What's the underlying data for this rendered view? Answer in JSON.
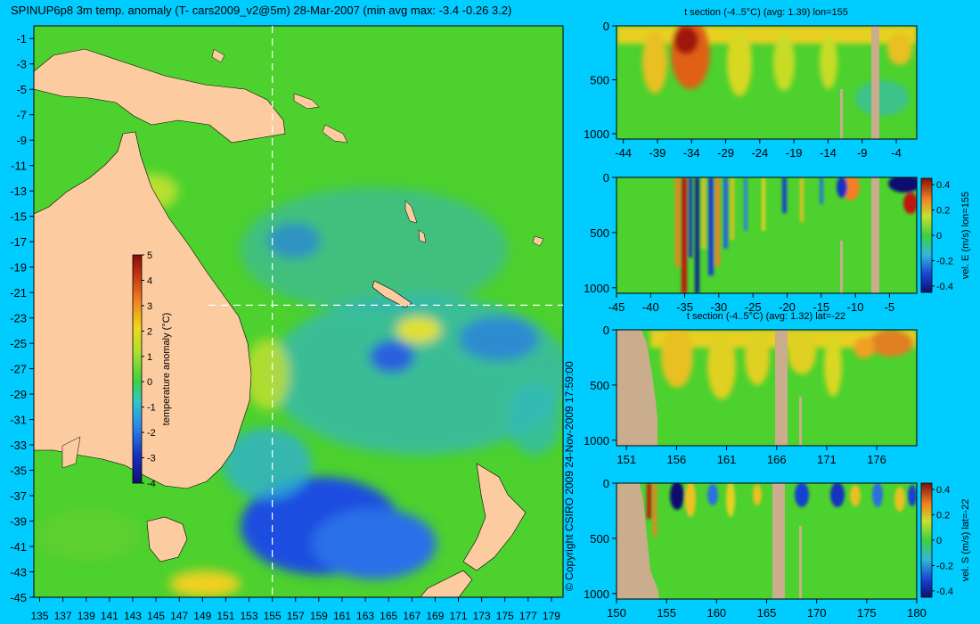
{
  "title": "SPINUP6p8 3m temp. anomaly (T- cars2009_v2@5m) 28-Mar-2007 (min avg max: -3.4 -0.26 3.2)",
  "copyright": "© Copyright CSIRO 2009   24-Nov-2009 17:59:00",
  "colors": {
    "background": "#00ccff",
    "ocean": "#4cd12e",
    "land": "#fccca0",
    "section_land": "#c9ad8c",
    "cold": "#2a6ee0",
    "warm": "#e8c020",
    "hot": "#b02010"
  },
  "chart_data": [
    {
      "type": "heatmap",
      "name": "main_map",
      "x_ticks": [
        135,
        137,
        139,
        141,
        143,
        145,
        147,
        149,
        151,
        153,
        155,
        157,
        159,
        161,
        163,
        165,
        167,
        169,
        171,
        173,
        175,
        177,
        179
      ],
      "y_ticks": [
        -1,
        -3,
        -5,
        -7,
        -9,
        -11,
        -13,
        -15,
        -17,
        -19,
        -21,
        -23,
        -25,
        -27,
        -29,
        -31,
        -33,
        -35,
        -37,
        -39,
        -41,
        -43,
        -45
      ],
      "xlim": [
        134.5,
        180
      ],
      "ylim": [
        -45,
        0
      ],
      "section_lines": {
        "lon": 155,
        "lat": -22
      },
      "colorbar": {
        "label": "temperature anomaly (°C)",
        "ticks": [
          5,
          4,
          3,
          2,
          1,
          0,
          -1,
          -2,
          -3,
          -4
        ],
        "range": [
          -4,
          5
        ]
      }
    },
    {
      "type": "heatmap",
      "name": "t_section_lon155",
      "title": "t section (-4..5°C) (avg: 1.39) lon=155",
      "x_ticks": [
        -44,
        -39,
        -34,
        -29,
        -24,
        -19,
        -14,
        -9,
        -4
      ],
      "xlim": [
        -45,
        -1
      ],
      "y_ticks": [
        0,
        500,
        1000
      ],
      "ylim": [
        1050,
        0
      ]
    },
    {
      "type": "heatmap",
      "name": "vel_e_section_lon155",
      "x_ticks": [
        -45,
        -40,
        -35,
        -30,
        -25,
        -20,
        -15,
        -10,
        -5
      ],
      "xlim": [
        -45,
        -1
      ],
      "y_ticks": [
        0,
        500,
        1000
      ],
      "ylim": [
        1050,
        0
      ],
      "colorbar": {
        "label": "vel. E (m/s) lon=155",
        "ticks": [
          0.4,
          0.2,
          0,
          -0.2,
          -0.4
        ],
        "range": [
          -0.45,
          0.45
        ]
      }
    },
    {
      "type": "heatmap",
      "name": "t_section_lat22",
      "title": "t section (-4..5°C) (avg: 1.32) lat=-22",
      "x_ticks": [
        151,
        156,
        161,
        166,
        171,
        176
      ],
      "xlim": [
        150,
        180
      ],
      "y_ticks": [
        0,
        500,
        1000
      ],
      "ylim": [
        1050,
        0
      ]
    },
    {
      "type": "heatmap",
      "name": "vel_s_section_lat22",
      "x_ticks": [
        150,
        155,
        160,
        165,
        170,
        175,
        180
      ],
      "xlim": [
        150,
        180
      ],
      "y_ticks": [
        0,
        500,
        1000
      ],
      "ylim": [
        1050,
        0
      ],
      "colorbar": {
        "label": "vel. S (m/s) lat=-22",
        "ticks": [
          0.4,
          0.2,
          0,
          -0.2,
          -0.4
        ],
        "range": [
          -0.45,
          0.45
        ]
      }
    }
  ]
}
